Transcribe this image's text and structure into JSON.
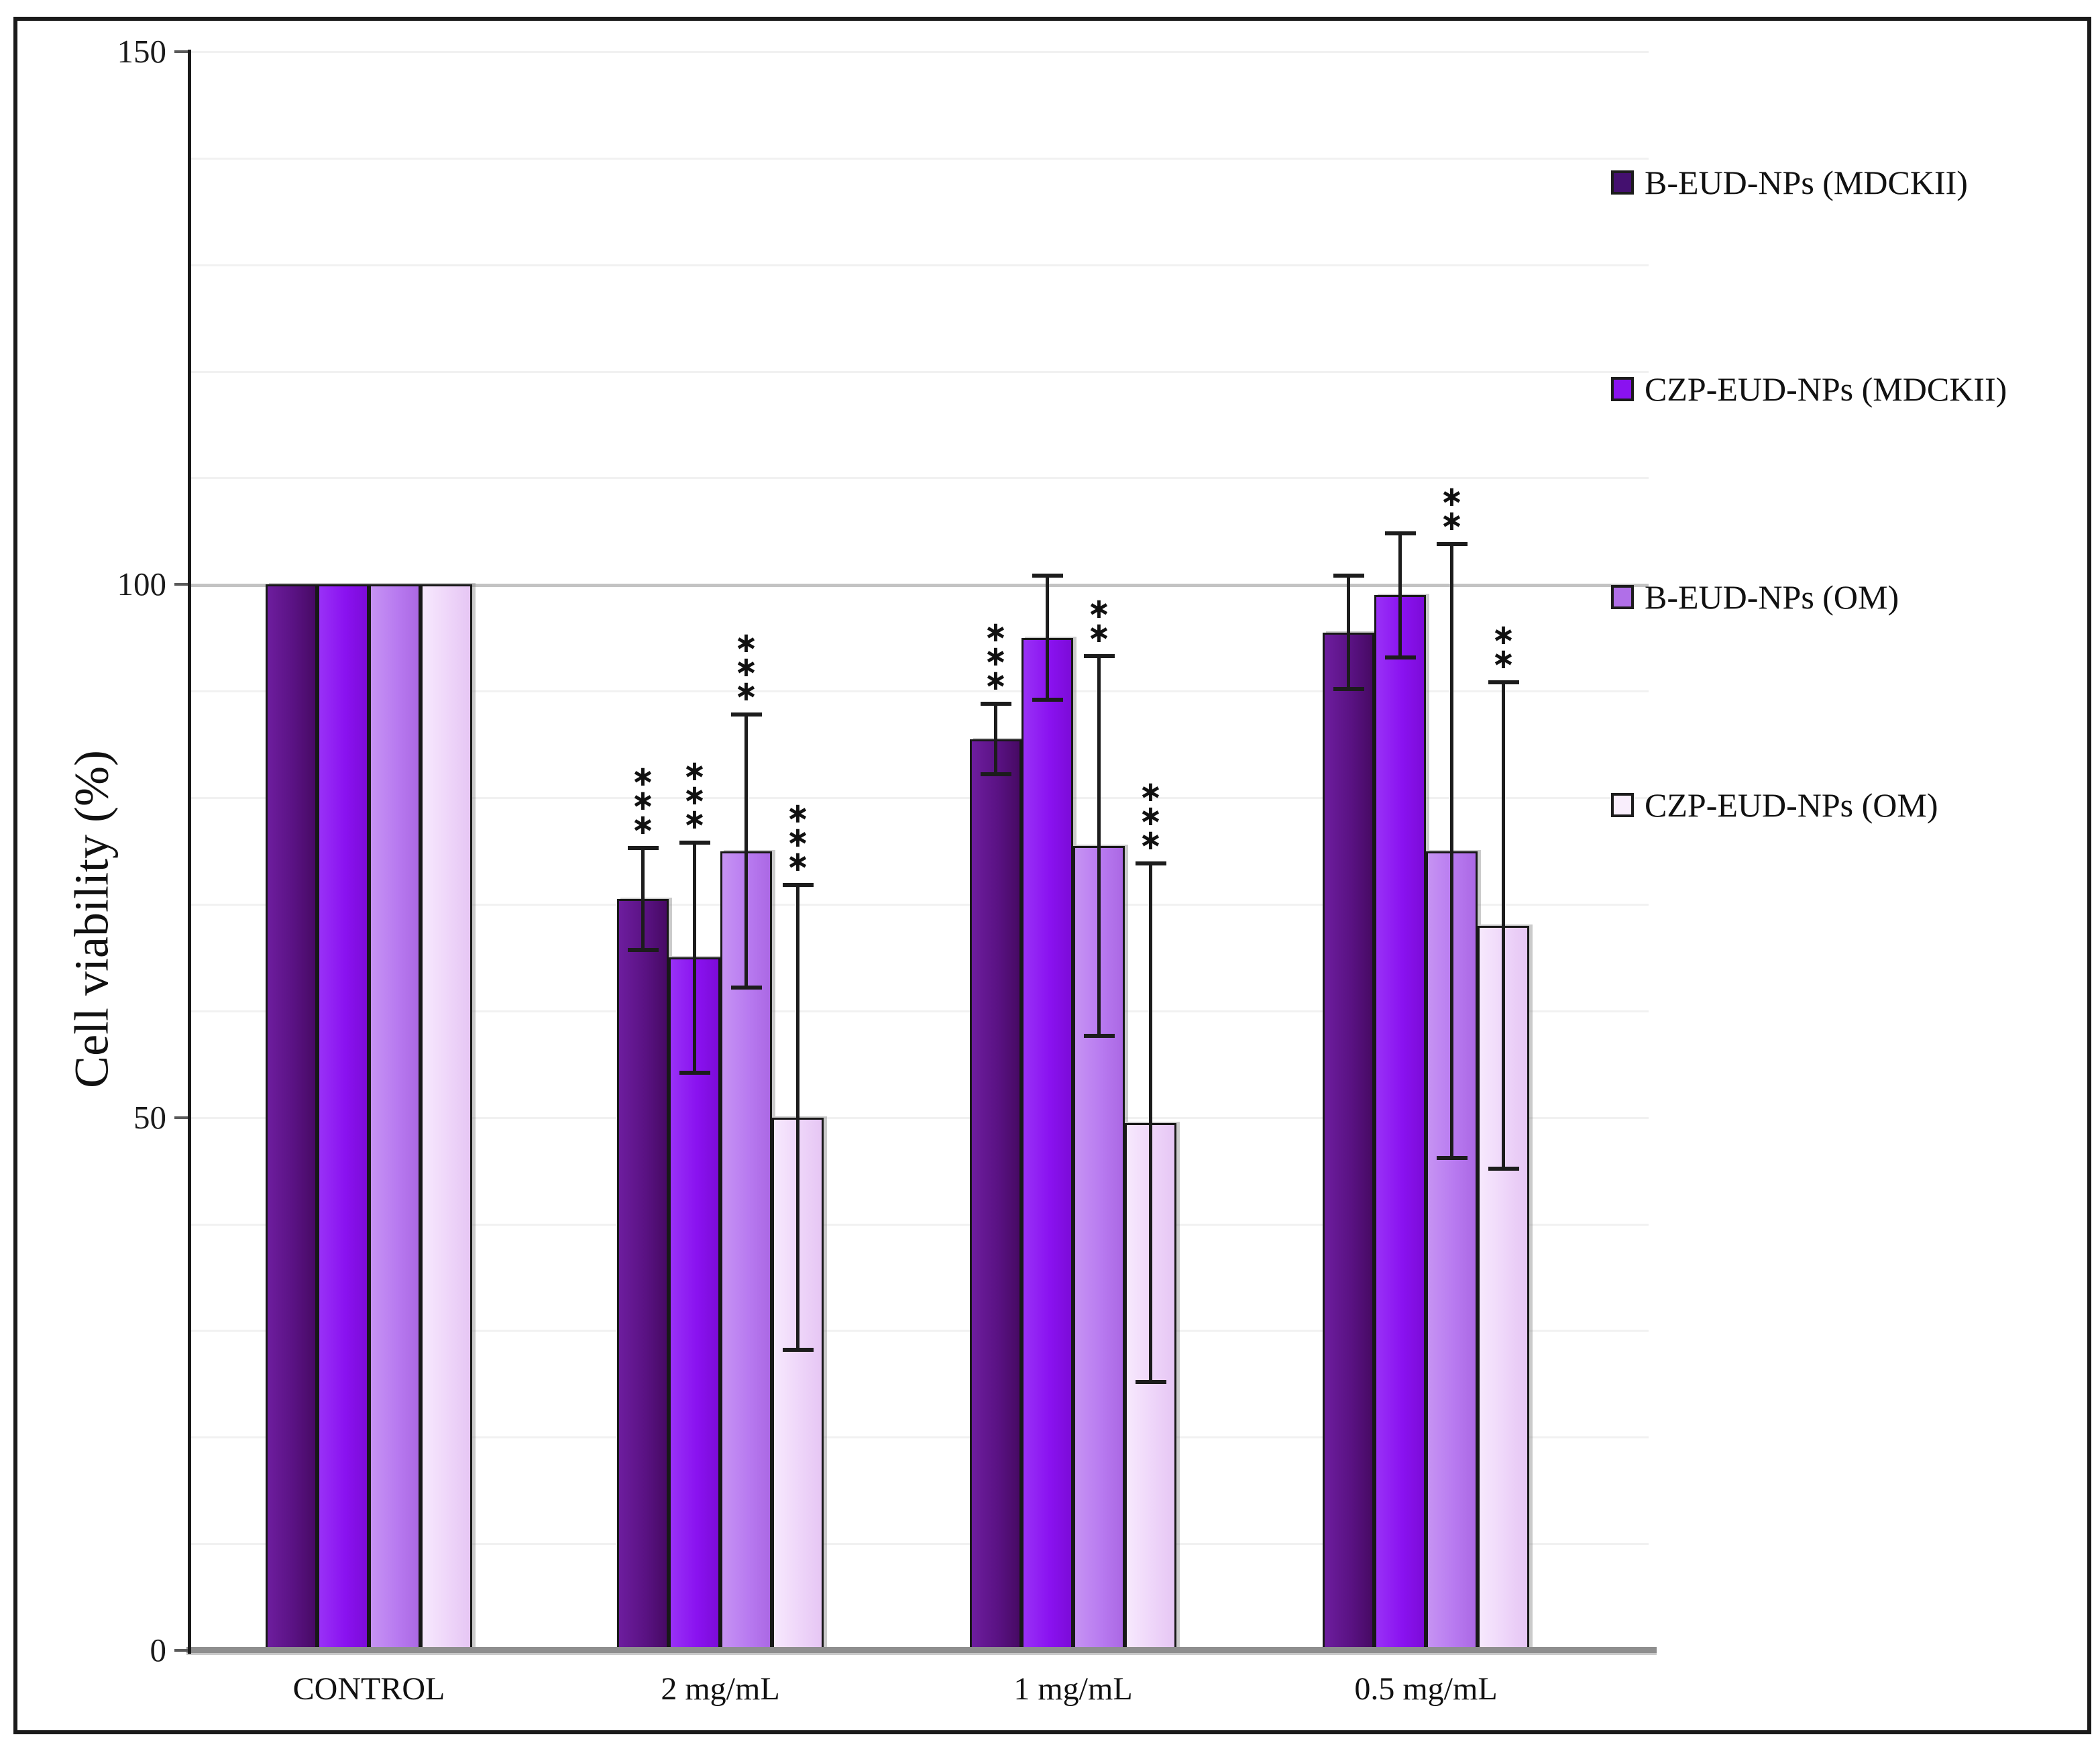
{
  "figure": {
    "ylabel": "Cell viability (%)"
  },
  "chart_data": {
    "type": "bar",
    "title": "",
    "xlabel": "",
    "ylabel": "Cell viability (%)",
    "ylim": [
      0,
      150
    ],
    "yticks": [
      0,
      50,
      100,
      150
    ],
    "minor_gridline_step": 10,
    "grid": true,
    "legend_position": "right",
    "categories": [
      "CONTROL",
      "2 mg/mL",
      "1 mg/mL",
      "0.5 mg/mL"
    ],
    "series": [
      {
        "name": "B-EUD-NPs (MDCKII)",
        "color": "#5a1283",
        "color_light": "#6d1d9e",
        "color_dark": "#470a64",
        "swatch": "#44106f",
        "values": [
          100,
          70.5,
          85.5,
          95.5
        ],
        "errors": [
          0,
          5,
          3.5,
          5.5
        ],
        "significance": [
          "",
          "***",
          "***",
          ""
        ]
      },
      {
        "name": "CZP-EUD-NPs (MDCKII)",
        "color": "#8a12f0",
        "color_light": "#9931f6",
        "color_dark": "#7c0bd8",
        "swatch": "#8a12f0",
        "values": [
          100,
          65,
          95,
          99
        ],
        "errors": [
          0,
          11,
          6,
          6
        ],
        "significance": [
          "",
          "***",
          "",
          ""
        ]
      },
      {
        "name": "B-EUD-NPs (OM)",
        "color": "#b87af0",
        "color_light": "#c693f3",
        "color_dark": "#ab68e4",
        "swatch": "#b06fe8",
        "values": [
          100,
          75,
          75.5,
          75
        ],
        "errors": [
          0,
          13,
          18,
          29
        ],
        "significance": [
          "",
          "***",
          "**",
          "**"
        ]
      },
      {
        "name": "CZP-EUD-NPs (OM)",
        "color": "#eed5f9",
        "color_light": "#f7e9fd",
        "color_dark": "#e6c6f4",
        "swatch": "#f9eefc",
        "values": [
          100,
          50,
          49.5,
          68
        ],
        "errors": [
          0,
          22,
          24.5,
          23
        ],
        "significance": [
          "",
          "***",
          "***",
          "**"
        ]
      }
    ]
  }
}
